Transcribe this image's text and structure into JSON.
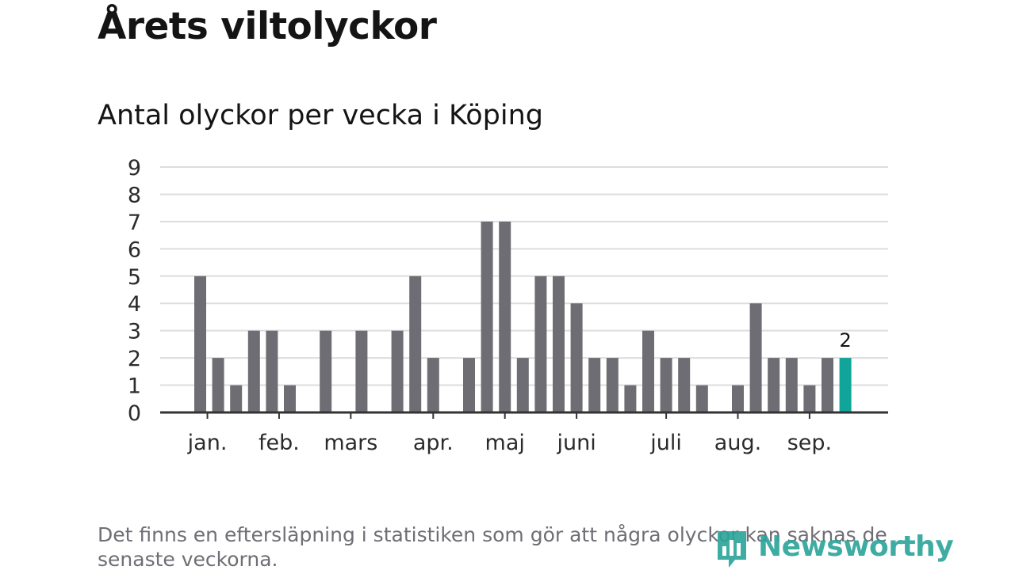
{
  "headline": "Årets viltolyckor",
  "footnote": "Det finns en eftersläpning i statistiken som gör att några olyckor kan saknas de senaste veckorna.",
  "brand": {
    "name": "Newsworthy",
    "icon": "newsworthy-logo-icon",
    "color": "#2aa49a"
  },
  "chart_data": {
    "type": "bar",
    "title": "Antal olyckor per vecka i Köping",
    "xlabel": "",
    "ylabel": "",
    "ylim": [
      0,
      9
    ],
    "yticks": [
      "0",
      "1",
      "2",
      "3",
      "4",
      "5",
      "6",
      "7",
      "8",
      "9"
    ],
    "grid": true,
    "legend": "none",
    "bar_color": "#6e6d73",
    "highlight_color": "#10a49a",
    "gridline_color": "#dddddd",
    "axis_color": "#333333",
    "values": [
      5,
      2,
      1,
      3,
      3,
      1,
      0,
      3,
      0,
      3,
      0,
      3,
      5,
      2,
      0,
      2,
      7,
      7,
      2,
      5,
      5,
      4,
      2,
      2,
      1,
      3,
      2,
      2,
      1,
      0,
      1,
      4,
      2,
      2,
      1,
      2,
      2
    ],
    "highlight_index": 36,
    "highlight_label": "2",
    "month_labels": [
      {
        "label": "jan.",
        "bar_index": 0.4
      },
      {
        "label": "feb.",
        "bar_index": 4.4
      },
      {
        "label": "mars",
        "bar_index": 8.4
      },
      {
        "label": "apr.",
        "bar_index": 13.0
      },
      {
        "label": "maj",
        "bar_index": 17.0
      },
      {
        "label": "juni",
        "bar_index": 21.0
      },
      {
        "label": "juli",
        "bar_index": 26.0
      },
      {
        "label": "aug.",
        "bar_index": 30.0
      },
      {
        "label": "sep.",
        "bar_index": 34.0
      }
    ]
  }
}
